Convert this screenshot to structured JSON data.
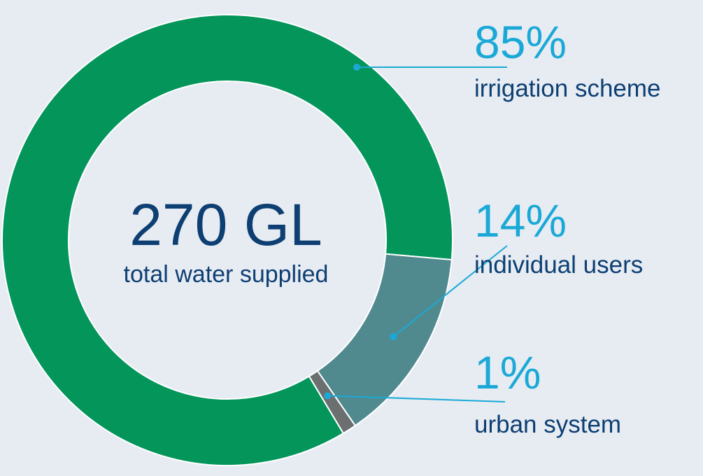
{
  "chart_data": {
    "type": "pie",
    "donut": true,
    "center": {
      "value": "270 GL",
      "label": "total water supplied"
    },
    "slices": [
      {
        "label": "irrigation scheme",
        "percent": 85,
        "percent_label": "85%",
        "color": "#03955a"
      },
      {
        "label": "individual users",
        "percent": 14,
        "percent_label": "14%",
        "color": "#508a8e"
      },
      {
        "label": "urban system",
        "percent": 1,
        "percent_label": "1%",
        "color": "#6b6f6f"
      }
    ],
    "colors": {
      "background": "#e7ecf3",
      "leader": "#1aa9d6",
      "value_text": "#1aa9d6",
      "label_text": "#0d3f72"
    }
  }
}
